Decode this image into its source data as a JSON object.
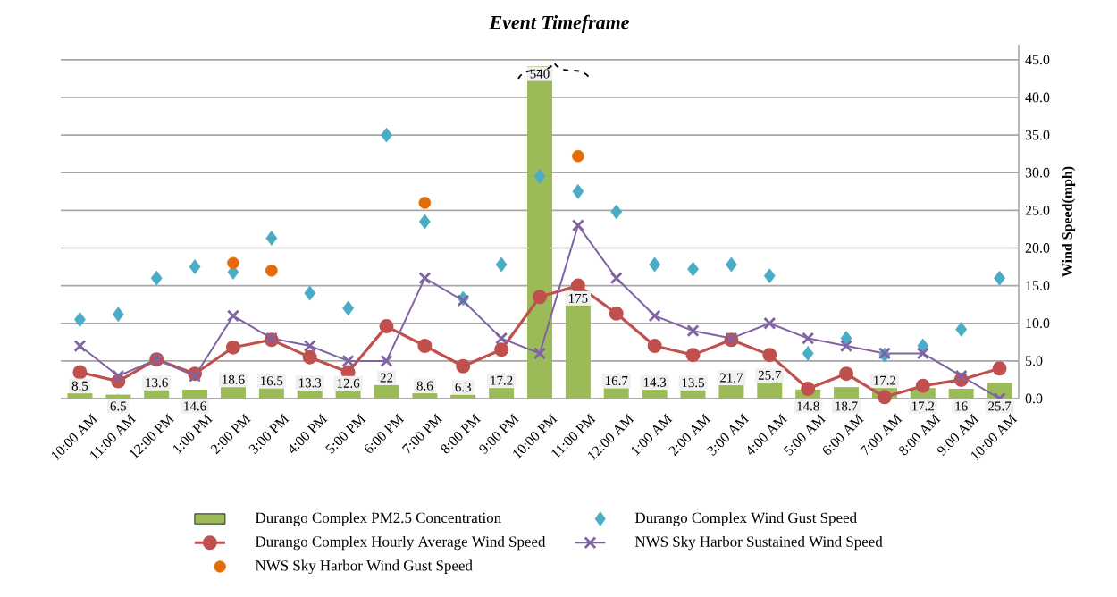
{
  "chart_data": {
    "type": "line",
    "annotations": [
      "Event Timeframe"
    ],
    "categories": [
      "10:00 AM",
      "11:00 AM",
      "12:00 PM",
      "1:00 PM",
      "2:00 PM",
      "3:00 PM",
      "4:00 PM",
      "5:00 PM",
      "6:00 PM",
      "7:00 PM",
      "8:00 PM",
      "9:00 PM",
      "10:00 PM",
      "11:00 PM",
      "12:00 AM",
      "1:00 AM",
      "2:00 AM",
      "3:00 AM",
      "4:00 AM",
      "5:00 AM",
      "6:00 AM",
      "7:00 AM",
      "8:00 AM",
      "9:00 AM",
      "10:00 AM"
    ],
    "ylabel": "Wind Speed(mph)",
    "ylim": [
      0,
      47
    ],
    "yticks": [
      {
        "value": 0,
        "label": "0.0"
      },
      {
        "value": 5,
        "label": "5.0"
      },
      {
        "value": 10,
        "label": "10.0"
      },
      {
        "value": 15,
        "label": "15.0"
      },
      {
        "value": 20,
        "label": "20.0"
      },
      {
        "value": 25,
        "label": "25.0"
      },
      {
        "value": 30,
        "label": "30.0"
      },
      {
        "value": 35,
        "label": "35.0"
      },
      {
        "value": 40,
        "label": "40.0"
      },
      {
        "value": 45,
        "label": "45.0"
      }
    ],
    "y2lim": [
      0,
      575
    ],
    "grid": "y",
    "legend": "bottom",
    "series": [
      {
        "name": "Durango Complex PM2.5 Concentration",
        "type": "bar",
        "axis": "y2",
        "color": "#9bbb59",
        "values": [
          8.5,
          6.5,
          13.6,
          14.6,
          18.6,
          16.5,
          13.3,
          12.6,
          22,
          8.6,
          6.3,
          17.2,
          540,
          175,
          16.7,
          14.3,
          13.5,
          21.7,
          25.7,
          14.8,
          18.7,
          17.2,
          17.2,
          16,
          25.7
        ],
        "value_labels": [
          "8.5",
          "6.5",
          "13.6",
          "14.6",
          "18.6",
          "16.5",
          "13.3",
          "12.6",
          "22",
          "8.6",
          "6.3",
          "17.2",
          "540",
          "175",
          "16.7",
          "14.3",
          "13.5",
          "21.7",
          "25.7",
          "14.8",
          "18.7",
          "17.2",
          "17.2",
          "16",
          "25.7"
        ]
      },
      {
        "name": "Durango Complex Wind Gust Speed",
        "type": "scatter",
        "marker": "diamond",
        "color": "#4bacc6",
        "values": [
          10.5,
          11.2,
          16.0,
          17.5,
          16.8,
          21.3,
          14.0,
          12.0,
          35.0,
          23.5,
          13.3,
          17.8,
          29.5,
          27.5,
          24.8,
          17.8,
          17.2,
          17.8,
          16.3,
          6.0,
          8.0,
          5.8,
          7.0,
          9.2,
          16.0
        ]
      },
      {
        "name": "Durango Complex Hourly Average Wind Speed",
        "marker": "circle",
        "color": "#c0504d",
        "values": [
          3.5,
          2.3,
          5.2,
          3.3,
          6.8,
          7.8,
          5.5,
          3.5,
          9.6,
          7.0,
          4.3,
          6.5,
          13.5,
          15.0,
          11.3,
          7.0,
          5.8,
          7.8,
          5.8,
          1.3,
          3.3,
          0.2,
          1.7,
          2.5,
          4.0
        ]
      },
      {
        "name": "NWS Sky Harbor Sustained Wind Speed",
        "marker": "cross",
        "color": "#8064a2",
        "values": [
          7,
          3,
          5.2,
          3,
          11,
          8,
          7,
          5,
          5,
          16,
          13,
          8,
          6,
          23,
          16,
          11,
          9,
          8,
          10,
          8,
          7,
          6,
          6,
          3,
          0
        ]
      },
      {
        "name": "NWS Sky Harbor Wind Gust Speed",
        "type": "scatter",
        "marker": "circle",
        "color": "#e36c09",
        "values": [
          null,
          null,
          null,
          null,
          18.0,
          17.0,
          null,
          null,
          null,
          26.0,
          null,
          null,
          null,
          32.2,
          null,
          null,
          null,
          null,
          null,
          null,
          null,
          null,
          null,
          null,
          null
        ]
      }
    ]
  }
}
